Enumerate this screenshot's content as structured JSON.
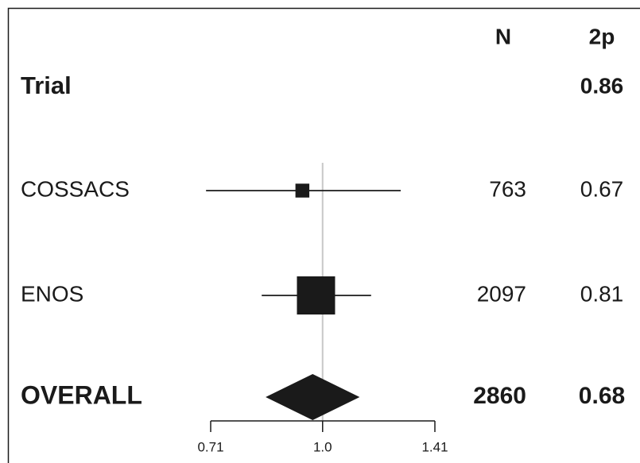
{
  "chart_data": {
    "type": "forest",
    "column_headers": [
      "N",
      "2p"
    ],
    "row_header": "Trial",
    "heterogeneity_p": 0.86,
    "categories": [
      "COSSACS",
      "ENOS"
    ],
    "estimates": [
      0.94,
      0.98
    ],
    "lower": [
      0.7,
      0.83
    ],
    "upper": [
      1.27,
      1.16
    ],
    "n": [
      763,
      2097
    ],
    "p": [
      0.67,
      0.81
    ],
    "overall": {
      "label": "OVERALL",
      "estimate": 0.97,
      "lower": 0.84,
      "upper": 1.12,
      "n": 2860,
      "p": 0.68
    },
    "xlim": [
      0.71,
      1.41
    ],
    "xticks": [
      0.71,
      {
        "value": 1,
        "label": "1.0"
      },
      1.41
    ],
    "log_scale": true,
    "reference_line": 1,
    "color": "#1a1a1a",
    "reference_color": "#c8c8c8"
  }
}
